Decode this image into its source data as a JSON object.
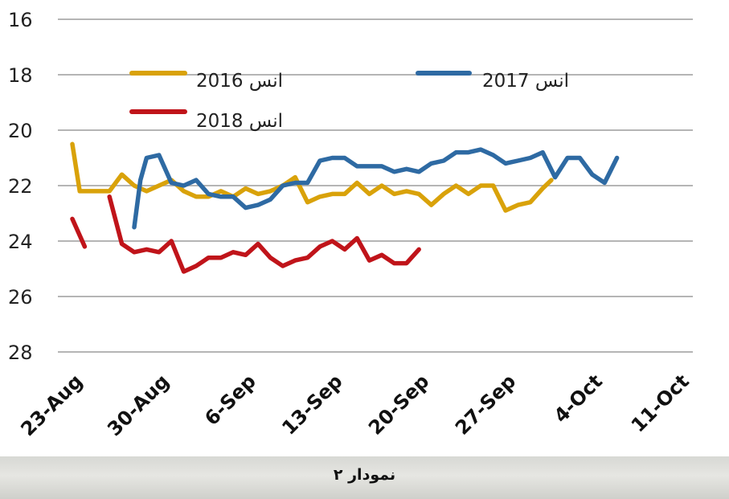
{
  "caption": "نمودار ۲",
  "chart_data": {
    "type": "line",
    "ylim": [
      16,
      28
    ],
    "y_reversed": true,
    "y_ticks": [
      "16",
      "18",
      "20",
      "22",
      "24",
      "26",
      "28"
    ],
    "x_ticks": [
      "23-Aug",
      "30-Aug",
      "6-Sep",
      "13-Sep",
      "20-Sep",
      "27-Sep",
      "4-Oct",
      "11-Oct"
    ],
    "x_tick_days": [
      0,
      7,
      14,
      21,
      28,
      35,
      42,
      49
    ],
    "grid": true,
    "legend_position": "top",
    "series": [
      {
        "name": "2016 انس",
        "color": "#d9a20a",
        "points": [
          [
            0,
            20.5
          ],
          [
            0.6,
            22.2
          ],
          [
            1.2,
            22.2
          ],
          [
            2,
            22.2
          ],
          [
            3,
            22.2
          ],
          [
            4,
            21.6
          ],
          [
            5,
            22.0
          ],
          [
            6,
            22.2
          ],
          [
            7,
            22.0
          ],
          [
            8,
            21.8
          ],
          [
            9,
            22.2
          ],
          [
            10,
            22.4
          ],
          [
            11,
            22.4
          ],
          [
            12,
            22.2
          ],
          [
            13,
            22.4
          ],
          [
            14,
            22.1
          ],
          [
            15,
            22.3
          ],
          [
            16,
            22.2
          ],
          [
            17,
            22.0
          ],
          [
            18,
            21.7
          ],
          [
            19,
            22.6
          ],
          [
            20,
            22.4
          ],
          [
            21,
            22.3
          ],
          [
            22,
            22.3
          ],
          [
            23,
            21.9
          ],
          [
            24,
            22.3
          ],
          [
            25,
            22.0
          ],
          [
            26,
            22.3
          ],
          [
            27,
            22.2
          ],
          [
            28,
            22.3
          ],
          [
            29,
            22.7
          ],
          [
            30,
            22.3
          ],
          [
            31,
            22.0
          ],
          [
            32,
            22.3
          ],
          [
            33,
            22.0
          ],
          [
            34,
            22.0
          ],
          [
            35,
            22.9
          ],
          [
            36,
            22.7
          ],
          [
            37,
            22.6
          ],
          [
            38,
            22.1
          ],
          [
            38.7,
            21.8
          ]
        ]
      },
      {
        "name": "2017 انس",
        "color": "#2e6aa3",
        "points": [
          [
            5,
            23.5
          ],
          [
            5.5,
            21.8
          ],
          [
            6,
            21.0
          ],
          [
            7,
            20.9
          ],
          [
            8,
            21.9
          ],
          [
            9,
            22.0
          ],
          [
            10,
            21.8
          ],
          [
            11,
            22.3
          ],
          [
            12,
            22.4
          ],
          [
            13,
            22.4
          ],
          [
            14,
            22.8
          ],
          [
            15,
            22.7
          ],
          [
            16,
            22.5
          ],
          [
            17,
            22.0
          ],
          [
            18,
            21.9
          ],
          [
            19,
            21.9
          ],
          [
            20,
            21.1
          ],
          [
            21,
            21.0
          ],
          [
            22,
            21.0
          ],
          [
            23,
            21.3
          ],
          [
            24,
            21.3
          ],
          [
            25,
            21.3
          ],
          [
            26,
            21.5
          ],
          [
            27,
            21.4
          ],
          [
            28,
            21.5
          ],
          [
            29,
            21.2
          ],
          [
            30,
            21.1
          ],
          [
            31,
            20.8
          ],
          [
            32,
            20.8
          ],
          [
            33,
            20.7
          ],
          [
            34,
            20.9
          ],
          [
            35,
            21.2
          ],
          [
            36,
            21.1
          ],
          [
            37,
            21.0
          ],
          [
            38,
            20.8
          ],
          [
            39,
            21.7
          ],
          [
            40,
            21.0
          ],
          [
            41,
            21.0
          ],
          [
            42,
            21.6
          ],
          [
            43,
            21.9
          ],
          [
            44,
            21.0
          ]
        ]
      },
      {
        "name": "2018 انس",
        "color": "#c0141a",
        "points": [
          [
            0,
            23.2
          ],
          [
            1,
            24.2
          ],
          [
            null,
            null
          ],
          [
            3,
            22.4
          ],
          [
            4,
            24.1
          ],
          [
            5,
            24.4
          ],
          [
            6,
            24.3
          ],
          [
            7,
            24.4
          ],
          [
            8,
            24.0
          ],
          [
            9,
            25.1
          ],
          [
            10,
            24.9
          ],
          [
            11,
            24.6
          ],
          [
            12,
            24.6
          ],
          [
            13,
            24.4
          ],
          [
            14,
            24.5
          ],
          [
            15,
            24.1
          ],
          [
            16,
            24.6
          ],
          [
            17,
            24.9
          ],
          [
            18,
            24.7
          ],
          [
            19,
            24.6
          ],
          [
            20,
            24.2
          ],
          [
            21,
            24.0
          ],
          [
            22,
            24.3
          ],
          [
            23,
            23.9
          ],
          [
            24,
            24.7
          ],
          [
            25,
            24.5
          ],
          [
            26,
            24.8
          ],
          [
            27,
            24.8
          ],
          [
            28,
            24.3
          ]
        ]
      }
    ]
  }
}
